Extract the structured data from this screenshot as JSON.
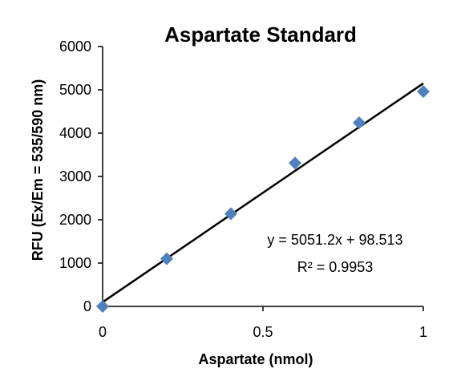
{
  "chart_data": {
    "type": "scatter",
    "title": "Aspartate Standard",
    "xlabel": "Aspartate (nmol)",
    "ylabel": "RFU (Ex/Em = 535/590 nm)",
    "xlim": [
      0,
      1
    ],
    "ylim": [
      0,
      6000
    ],
    "x_ticks": [
      0,
      0.5,
      1
    ],
    "x_tick_labels": [
      "0",
      "0.5",
      "1"
    ],
    "y_ticks": [
      0,
      1000,
      2000,
      3000,
      4000,
      5000,
      6000
    ],
    "y_tick_labels": [
      "0",
      "1000",
      "2000",
      "3000",
      "4000",
      "5000",
      "6000"
    ],
    "grid": false,
    "legend": "none",
    "marker": "diamond",
    "series": [
      {
        "x": [
          0,
          0.2,
          0.4,
          0.6,
          0.8,
          1.0
        ],
        "y": [
          0,
          1100,
          2140,
          3310,
          4240,
          4960
        ],
        "color": "#4F81BD"
      }
    ],
    "trendline": {
      "slope": 5051.2,
      "intercept": 98.513,
      "color": "#000000",
      "equation": "y = 5051.2x + 98.513",
      "r_squared": "R² = 0.9953"
    }
  }
}
